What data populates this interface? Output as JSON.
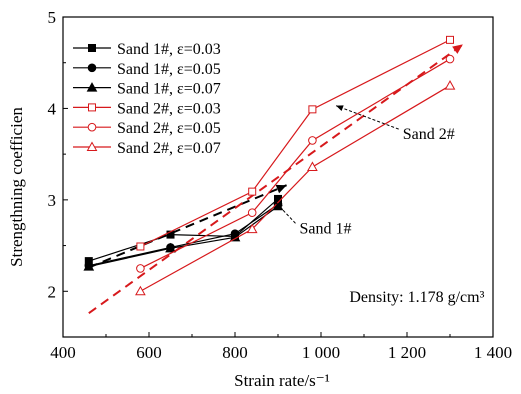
{
  "chart_data": {
    "type": "line",
    "xlabel": "Strain rate/s⁻¹",
    "ylabel": "Strengthning coefficien",
    "xlim": [
      400,
      1400
    ],
    "ylim": [
      1.5,
      5
    ],
    "x_ticks": [
      400,
      600,
      800,
      1000,
      1200,
      1400
    ],
    "x_tick_labels": [
      "400",
      "600",
      "800",
      "1 000",
      "1 200",
      "1 400"
    ],
    "y_ticks": [
      2,
      3,
      4,
      5
    ],
    "y_tick_labels": [
      "2",
      "3",
      "4",
      "5"
    ],
    "grid": false,
    "legend_placement": "top-left",
    "series": [
      {
        "name": "Sand 1#, ε=0.03",
        "color": "#000000",
        "marker": "square-filled",
        "x": [
          460,
          650,
          800,
          900
        ],
        "y": [
          2.33,
          2.62,
          2.6,
          3.01
        ]
      },
      {
        "name": "Sand 1#, ε=0.05",
        "color": "#000000",
        "marker": "circle-filled",
        "x": [
          460,
          650,
          800,
          900
        ],
        "y": [
          2.28,
          2.48,
          2.63,
          2.95
        ]
      },
      {
        "name": "Sand 1#, ε=0.07",
        "color": "#000000",
        "marker": "triangle-filled",
        "x": [
          460,
          650,
          800,
          900
        ],
        "y": [
          2.27,
          2.47,
          2.59,
          2.93
        ]
      },
      {
        "name": "Sand 2#, ε=0.03",
        "color": "#d7191c",
        "marker": "square-open",
        "x": [
          580,
          840,
          980,
          1300
        ],
        "y": [
          2.49,
          3.09,
          3.99,
          4.75
        ]
      },
      {
        "name": "Sand 2#, ε=0.05",
        "color": "#d7191c",
        "marker": "circle-open",
        "x": [
          580,
          840,
          980,
          1300
        ],
        "y": [
          2.25,
          2.86,
          3.65,
          4.54
        ]
      },
      {
        "name": "Sand 2#, ε=0.07",
        "color": "#d7191c",
        "marker": "triangle-open",
        "x": [
          580,
          840,
          980,
          1300
        ],
        "y": [
          2.0,
          2.68,
          3.36,
          4.25
        ]
      }
    ],
    "trend_lines": [
      {
        "color": "#000000",
        "x": [
          460,
          920
        ],
        "y": [
          2.26,
          3.16
        ]
      },
      {
        "color": "#d7191c",
        "x": [
          460,
          1330
        ],
        "y": [
          1.76,
          4.7
        ]
      }
    ],
    "annotations": [
      {
        "text": "Sand 1#",
        "color": "#000000",
        "text_x": 950,
        "text_y": 2.7,
        "arrow_to_x": 895,
        "arrow_to_y": 2.97
      },
      {
        "text": "Sand 2#",
        "color": "#000000",
        "text_x": 1190,
        "text_y": 3.73,
        "arrow_to_x": 1035,
        "arrow_to_y": 4.03
      },
      {
        "text": "Density: 1.178 g/cm³",
        "color": "#000000",
        "text_x": 1380,
        "text_y": 1.95,
        "anchor": "end"
      }
    ]
  }
}
